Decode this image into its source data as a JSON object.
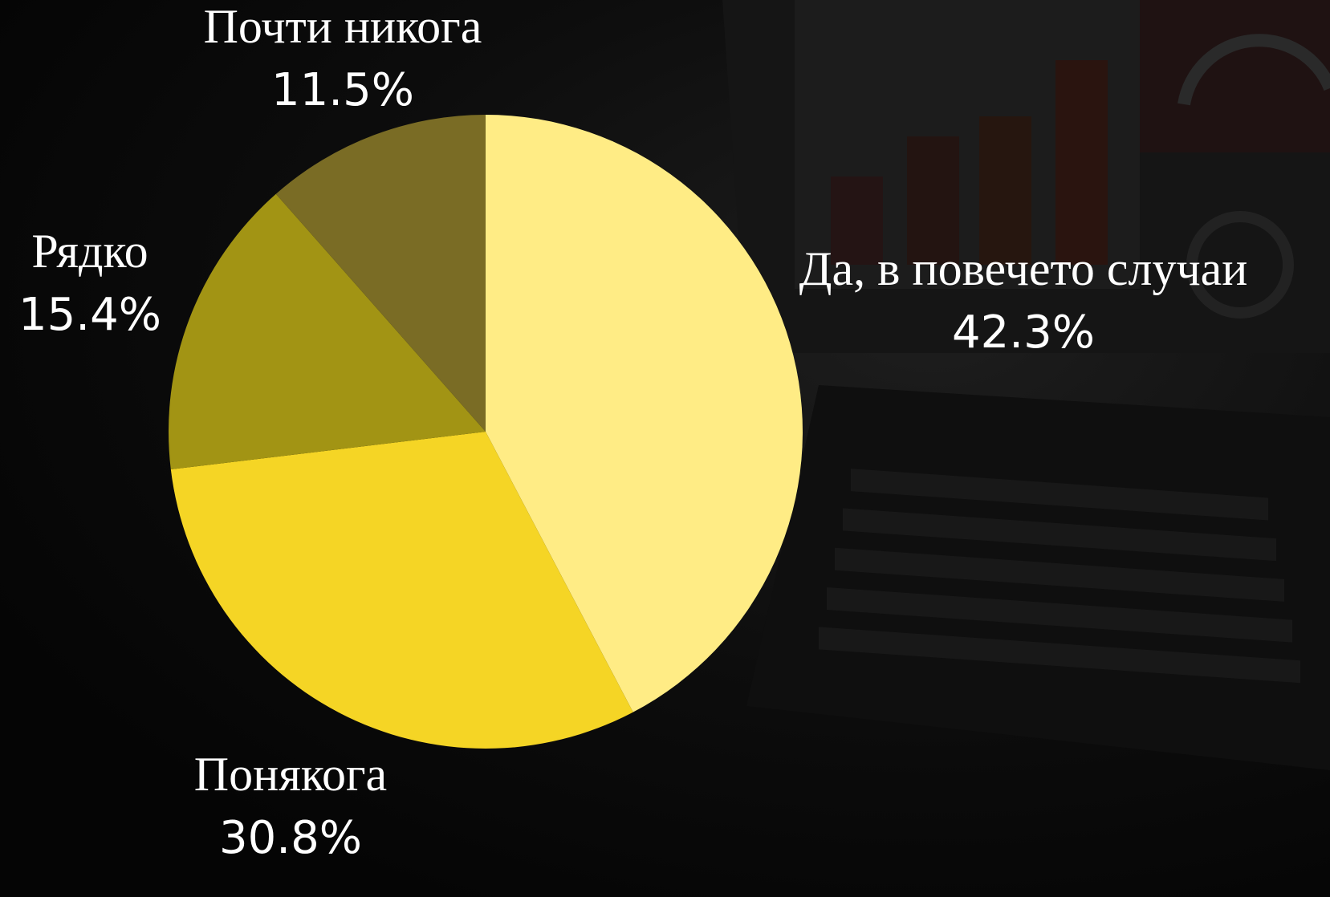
{
  "chart_data": {
    "type": "pie",
    "title": "",
    "slices": [
      {
        "label": "Да, в повечето случаи",
        "value": 42.3,
        "value_label": "42.3%",
        "color": "#FFEC85"
      },
      {
        "label": "Понякога",
        "value": 30.8,
        "value_label": "30.8%",
        "color": "#F5D525"
      },
      {
        "label": "Рядко",
        "value": 15.4,
        "value_label": "15.4%",
        "color": "#A29414"
      },
      {
        "label": "Почти никога",
        "value": 11.5,
        "value_label": "11.5%",
        "color": "#7A6C25"
      }
    ],
    "start_angle": "12 o'clock",
    "direction": "clockwise",
    "legend": "none",
    "labels": "outside, name above percentage",
    "background": "dark photo of a laptop showing a dashboard"
  }
}
